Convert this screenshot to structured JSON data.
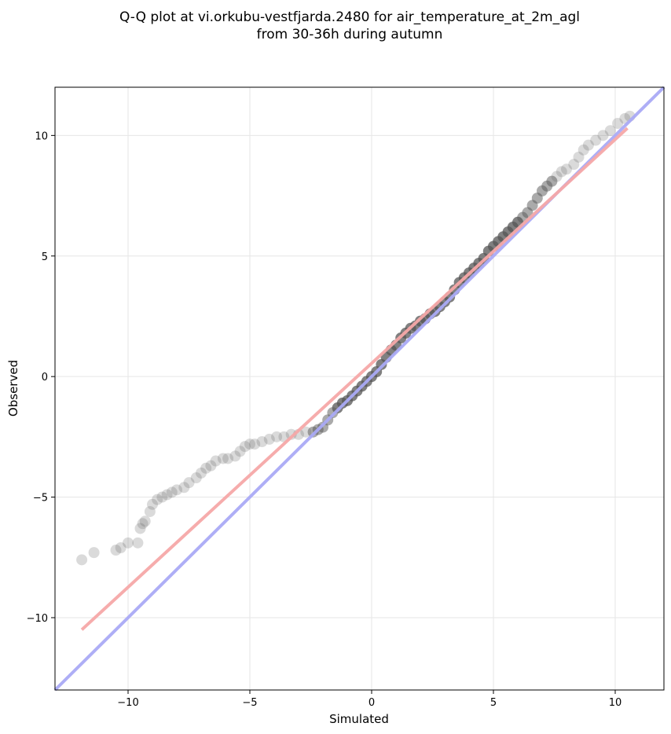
{
  "chart_data": {
    "type": "scatter",
    "title_lines": [
      "Q-Q plot at vi.orkubu-vestfjarda.2480 for air_temperature_at_2m_agl",
      "from 30-36h during autumn"
    ],
    "xlabel": "Simulated",
    "ylabel": "Observed",
    "xlim": [
      -13,
      12
    ],
    "ylim": [
      -13,
      12
    ],
    "xticks": [
      -10,
      -5,
      0,
      5,
      10
    ],
    "yticks": [
      -10,
      -5,
      0,
      5,
      10
    ],
    "xtick_labels": [
      "−10",
      "−5",
      "0",
      "5",
      "10"
    ],
    "ytick_labels": [
      "−10",
      "−5",
      "0",
      "5",
      "10"
    ],
    "grid": true,
    "colors": {
      "points": "#555555",
      "identity_line": "#aaaaf5",
      "fit_line": "#f5a8a8",
      "core_red": "#8b1a1a",
      "core_blue": "#1a1a8b"
    },
    "series": [
      {
        "type": "scatter",
        "points": [
          [
            -11.9,
            -7.6
          ],
          [
            -11.4,
            -7.3
          ],
          [
            -10.5,
            -7.2
          ],
          [
            -10.3,
            -7.1
          ],
          [
            -10.0,
            -6.9
          ],
          [
            -9.6,
            -6.9
          ],
          [
            -9.5,
            -6.3
          ],
          [
            -9.4,
            -6.1
          ],
          [
            -9.3,
            -6.0
          ],
          [
            -9.1,
            -5.6
          ],
          [
            -9.0,
            -5.3
          ],
          [
            -8.8,
            -5.1
          ],
          [
            -8.6,
            -5.0
          ],
          [
            -8.4,
            -4.9
          ],
          [
            -8.2,
            -4.8
          ],
          [
            -8.0,
            -4.7
          ],
          [
            -7.7,
            -4.6
          ],
          [
            -7.5,
            -4.4
          ],
          [
            -7.2,
            -4.2
          ],
          [
            -7.0,
            -4.0
          ],
          [
            -6.8,
            -3.8
          ],
          [
            -6.6,
            -3.7
          ],
          [
            -6.4,
            -3.5
          ],
          [
            -6.1,
            -3.4
          ],
          [
            -5.9,
            -3.4
          ],
          [
            -5.6,
            -3.3
          ],
          [
            -5.4,
            -3.1
          ],
          [
            -5.2,
            -2.9
          ],
          [
            -5.0,
            -2.8
          ],
          [
            -4.8,
            -2.8
          ],
          [
            -4.5,
            -2.7
          ],
          [
            -4.2,
            -2.6
          ],
          [
            -3.9,
            -2.5
          ],
          [
            -3.6,
            -2.5
          ],
          [
            -3.3,
            -2.4
          ],
          [
            -3.0,
            -2.4
          ],
          [
            -2.7,
            -2.3
          ],
          [
            -2.4,
            -2.3
          ],
          [
            -2.2,
            -2.2
          ],
          [
            -2.0,
            -2.1
          ],
          [
            -1.8,
            -1.8
          ],
          [
            -1.6,
            -1.5
          ],
          [
            -1.4,
            -1.3
          ],
          [
            -1.2,
            -1.1
          ],
          [
            -1.0,
            -1.0
          ],
          [
            -0.8,
            -0.8
          ],
          [
            -0.6,
            -0.6
          ],
          [
            -0.4,
            -0.4
          ],
          [
            -0.2,
            -0.2
          ],
          [
            0.0,
            0.0
          ],
          [
            0.2,
            0.2
          ],
          [
            0.4,
            0.5
          ],
          [
            0.6,
            0.8
          ],
          [
            0.8,
            1.1
          ],
          [
            1.0,
            1.3
          ],
          [
            1.2,
            1.6
          ],
          [
            1.4,
            1.8
          ],
          [
            1.6,
            2.0
          ],
          [
            1.8,
            2.1
          ],
          [
            2.0,
            2.3
          ],
          [
            2.2,
            2.4
          ],
          [
            2.4,
            2.6
          ],
          [
            2.6,
            2.7
          ],
          [
            2.8,
            2.9
          ],
          [
            3.0,
            3.1
          ],
          [
            3.2,
            3.3
          ],
          [
            3.4,
            3.6
          ],
          [
            3.6,
            3.9
          ],
          [
            3.8,
            4.1
          ],
          [
            4.0,
            4.3
          ],
          [
            4.2,
            4.5
          ],
          [
            4.4,
            4.7
          ],
          [
            4.6,
            4.9
          ],
          [
            4.8,
            5.2
          ],
          [
            5.0,
            5.4
          ],
          [
            5.2,
            5.6
          ],
          [
            5.4,
            5.8
          ],
          [
            5.6,
            6.0
          ],
          [
            5.8,
            6.2
          ],
          [
            6.0,
            6.4
          ],
          [
            6.2,
            6.6
          ],
          [
            6.4,
            6.8
          ],
          [
            6.6,
            7.1
          ],
          [
            6.8,
            7.4
          ],
          [
            7.0,
            7.7
          ],
          [
            7.2,
            7.9
          ],
          [
            7.4,
            8.1
          ],
          [
            7.6,
            8.3
          ],
          [
            7.8,
            8.5
          ],
          [
            8.0,
            8.6
          ],
          [
            8.3,
            8.8
          ],
          [
            8.5,
            9.1
          ],
          [
            8.7,
            9.4
          ],
          [
            8.9,
            9.6
          ],
          [
            9.2,
            9.8
          ],
          [
            9.5,
            10.0
          ],
          [
            9.8,
            10.2
          ],
          [
            10.1,
            10.5
          ],
          [
            10.4,
            10.7
          ],
          [
            10.6,
            10.8
          ]
        ]
      },
      {
        "type": "line",
        "role": "identity",
        "points": [
          [
            -13,
            -13
          ],
          [
            12,
            12
          ]
        ]
      },
      {
        "type": "line",
        "role": "fit",
        "points": [
          [
            -11.9,
            -10.5
          ],
          [
            10.5,
            10.3
          ]
        ]
      }
    ]
  }
}
